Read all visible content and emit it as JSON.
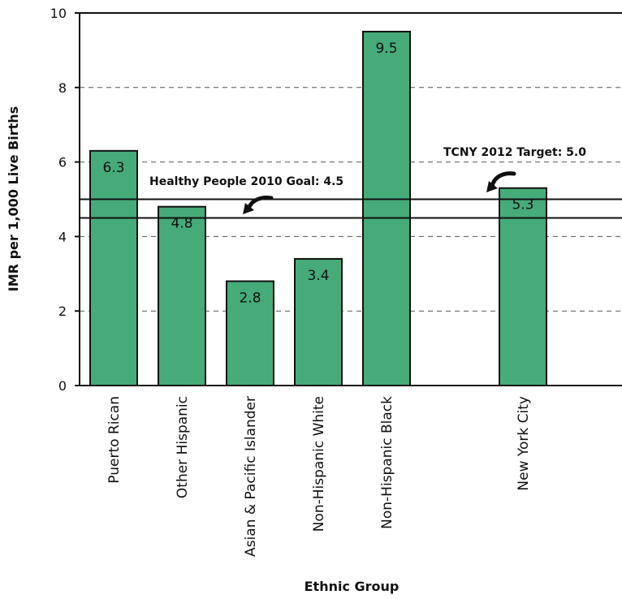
{
  "chart_data": {
    "type": "bar",
    "categories": [
      "Puerto Rican",
      "Other Hispanic",
      "Asian & Pacific Islander",
      "Non-Hispanic White",
      "Non-Hispanic Black",
      "",
      "New York City"
    ],
    "values": [
      6.3,
      4.8,
      2.8,
      3.4,
      9.5,
      null,
      5.3
    ],
    "value_labels": [
      "6.3",
      "4.8",
      "2.8",
      "3.4",
      "9.5",
      "",
      "5.3"
    ],
    "xlabel": "Ethnic Group",
    "ylabel": "IMR per 1,000 Live Births",
    "ylim": [
      0,
      10
    ],
    "yticks": [
      0,
      2,
      4,
      6,
      8,
      10
    ],
    "ytick_labels": [
      "0",
      "2",
      "4",
      "6",
      "8",
      "10"
    ],
    "grid": true,
    "reference_lines": [
      {
        "label": "TCNY 2012 Target: 5.0",
        "value": 5.0
      },
      {
        "label": "Healthy People 2010 Goal: 4.5",
        "value": 4.5
      }
    ],
    "colors": {
      "bar": "#46ab78",
      "edge": "#111111",
      "grid": "#555555"
    }
  }
}
